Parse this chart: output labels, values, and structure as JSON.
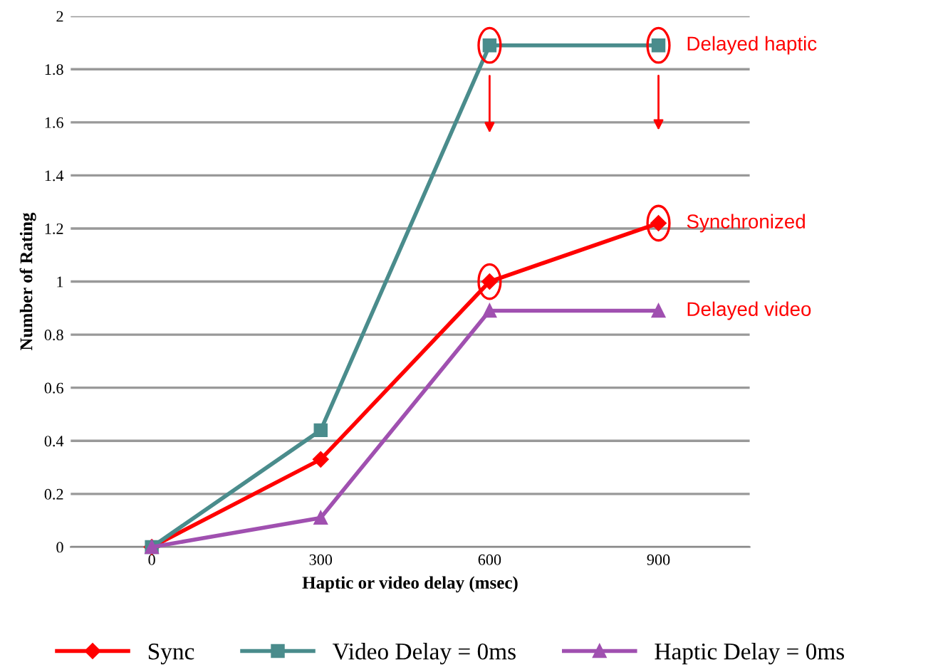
{
  "chart_data": {
    "type": "line",
    "xlabel": "Haptic or video delay (msec)",
    "ylabel": "Number of Rating",
    "categories": [
      "0",
      "300",
      "600",
      "900"
    ],
    "series": [
      {
        "name": "Sync",
        "color": "#ff0000",
        "marker": "diamond",
        "values": [
          0,
          0.33,
          1.0,
          1.22
        ]
      },
      {
        "name": "Video Delay = 0ms",
        "color": "#4a8c8c",
        "marker": "square",
        "values": [
          0,
          0.44,
          1.89,
          1.89
        ]
      },
      {
        "name": "Haptic Delay = 0ms",
        "color": "#a050b0",
        "marker": "triangle",
        "values": [
          0,
          0.11,
          0.89,
          0.89
        ]
      }
    ],
    "ylim": [
      0,
      2
    ],
    "yticks": [
      0,
      0.2,
      0.4,
      0.6,
      0.8,
      1,
      1.2,
      1.4,
      1.6,
      1.8,
      2
    ],
    "grid": "y",
    "legend": "bottom",
    "annotations": [
      {
        "text": "Delayed haptic",
        "x": "900",
        "y": 1.89
      },
      {
        "text": "Synchronized",
        "x": "900",
        "y": 1.22
      },
      {
        "text": "Delayed video",
        "x": "900",
        "y": 0.89
      }
    ]
  }
}
